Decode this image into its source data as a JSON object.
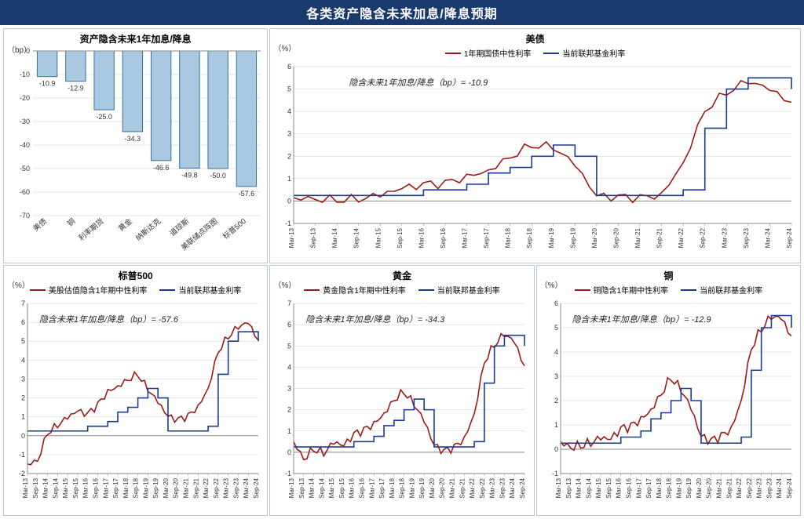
{
  "header_title": "各类资产隐含未来加息/降息预期",
  "colors": {
    "header_bg": "#1a3a6e",
    "bar_fill": "#a8c9e0",
    "bar_border": "#3a6ea5",
    "line1": "#9b1a1a",
    "line2": "#1a3a9b",
    "grid": "#cccccc",
    "axis": "#888888",
    "text": "#333333"
  },
  "bar_chart": {
    "title": "资产隐含未来1年加息/降息",
    "ylabel": "（bp）",
    "categories": [
      "美债",
      "铜",
      "利率期货",
      "黄金",
      "纳斯达克",
      "道琼斯",
      "美联储点阵图",
      "标普500"
    ],
    "values": [
      -10.9,
      -12.9,
      -25.0,
      -34.3,
      -46.6,
      -49.8,
      -50.0,
      -57.6
    ],
    "ylim": [
      -70,
      0
    ],
    "ytick_step": 10,
    "bar_color": "#a8c9e0",
    "bar_border_color": "#3a6ea5",
    "grid_color": "#cccccc",
    "label_fontsize": 9
  },
  "line_charts": {
    "common": {
      "series2_name": "当前联邦基金利率",
      "x_labels": [
        "Mar-13",
        "Sep-13",
        "Mar-14",
        "Sep-14",
        "Mar-15",
        "Sep-15",
        "Mar-16",
        "Sep-16",
        "Mar-17",
        "Sep-17",
        "Mar-18",
        "Sep-18",
        "Mar-19",
        "Sep-19",
        "Mar-20",
        "Sep-20",
        "Mar-21",
        "Sep-21",
        "Mar-22",
        "Sep-22",
        "Mar-23",
        "Sep-23",
        "Mar-24",
        "Sep-24"
      ],
      "fed_funds": [
        0.25,
        0.25,
        0.25,
        0.25,
        0.25,
        0.25,
        0.5,
        0.5,
        0.75,
        1.25,
        1.5,
        2.0,
        2.5,
        2.0,
        0.25,
        0.25,
        0.25,
        0.25,
        0.5,
        3.25,
        5.0,
        5.5,
        5.5,
        5.0
      ],
      "ylabel": "（%）"
    },
    "treasury": {
      "title": "美债",
      "series1_name": "1年期国债中性利率",
      "annotation": "隐含未来1年加息/降息（bp）= -10.9",
      "data1": [
        0.15,
        0.12,
        0.1,
        0.13,
        0.3,
        0.55,
        0.7,
        0.75,
        1.05,
        1.35,
        2.0,
        2.55,
        2.45,
        1.65,
        0.2,
        0.13,
        0.1,
        0.25,
        1.7,
        4.1,
        4.9,
        5.4,
        5.0,
        4.35
      ],
      "ylim": [
        -1,
        6
      ],
      "ytick_step": 1
    },
    "sp500": {
      "title": "标普500",
      "series1_name": "美股估值隐含1年期中性利率",
      "annotation": "隐含未来1年加息/降息（bp）= -57.6",
      "data1": [
        -1.5,
        -1.3,
        0.2,
        0.6,
        1.0,
        1.3,
        1.1,
        1.6,
        2.3,
        2.6,
        3.0,
        3.3,
        2.5,
        1.8,
        1.0,
        0.8,
        1.0,
        1.5,
        2.5,
        4.5,
        5.3,
        5.8,
        6.0,
        5.0
      ],
      "ylim": [
        -2,
        7
      ],
      "ytick_step": 1
    },
    "gold": {
      "title": "黄金",
      "series1_name": "黄金隐含1年期中性利率",
      "annotation": "隐含未来1年加息/降息（bp）= -34.3",
      "data1": [
        0.5,
        -0.3,
        0.2,
        0.0,
        0.5,
        0.3,
        0.8,
        1.0,
        1.3,
        1.8,
        2.5,
        2.9,
        2.3,
        1.5,
        0.3,
        0.0,
        0.2,
        0.6,
        1.8,
        4.3,
        5.1,
        5.6,
        5.2,
        4.0
      ],
      "ylim": [
        -1,
        7
      ],
      "ytick_step": 1
    },
    "copper": {
      "title": "铜",
      "series1_name": "铜隐含1年期中性利率",
      "annotation": "隐含未来1年加息/降息（bp）= -12.9",
      "data1": [
        0.3,
        0.1,
        0.2,
        0.3,
        0.5,
        0.4,
        0.8,
        0.9,
        1.2,
        1.6,
        2.3,
        3.0,
        2.5,
        1.7,
        0.5,
        0.3,
        0.5,
        0.8,
        2.0,
        4.2,
        5.0,
        5.5,
        5.4,
        4.6
      ],
      "ylim": [
        -1,
        6
      ],
      "ytick_step": 1
    }
  }
}
